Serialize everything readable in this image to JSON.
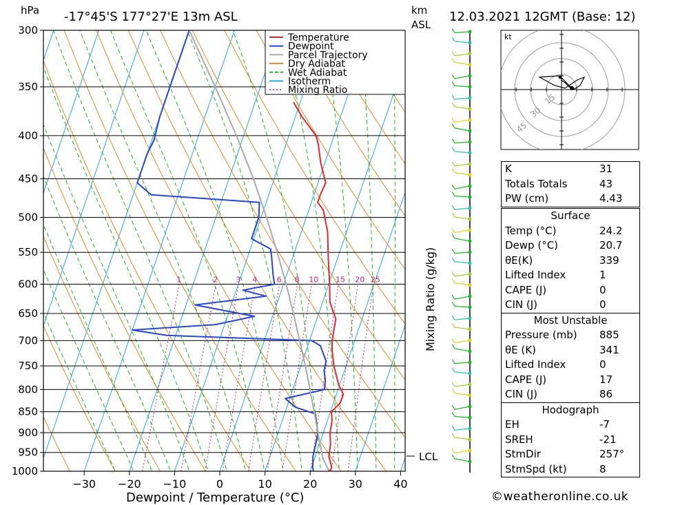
{
  "header": {
    "location": "-17°45'S  177°27'E  13m  ASL",
    "datetime": "12.03.2021  12GMT  (Base: 12)",
    "pressure_unit": "hPa",
    "height_unit_km": "km",
    "height_unit_asl": "ASL"
  },
  "chart_data": {
    "type": "skewt",
    "title": "-17°45'S 177°27'E 13m ASL",
    "xlabel": "Dewpoint / Temperature (°C)",
    "ylabel": "hPa",
    "y2label": "Mixing Ratio (g/kg)",
    "xlim": [
      -40,
      40
    ],
    "ylim": [
      1000,
      300
    ],
    "pressure_ticks": [
      300,
      350,
      400,
      450,
      500,
      550,
      600,
      650,
      700,
      750,
      800,
      850,
      900,
      950,
      1000
    ],
    "temp_ticks": [
      -30,
      -20,
      -10,
      0,
      10,
      20,
      30,
      40
    ],
    "mixing_ratio_labels": [
      "1",
      "2",
      "3",
      "4",
      "6",
      "8",
      "10",
      "15",
      "20",
      "25"
    ],
    "mixing_ratio_values": [
      1,
      2,
      3,
      4,
      6,
      8,
      10,
      15,
      20,
      25
    ],
    "lcl_label": "LCL",
    "lcl_pressure": 965,
    "legend": [
      {
        "name": "Temperature",
        "color": "#e8242b"
      },
      {
        "name": "Dewpoint",
        "color": "#2544d8"
      },
      {
        "name": "Parcel Trajectory",
        "color": "#a9a9a9"
      },
      {
        "name": "Dry Adiabat",
        "color": "#e08a2a"
      },
      {
        "name": "Wet Adiabat",
        "color": "#1fb51f"
      },
      {
        "name": "Isotherm",
        "color": "#24a7e0"
      },
      {
        "name": "Mixing Ratio",
        "color": "#c0227f"
      }
    ],
    "series": [
      {
        "name": "Temperature",
        "color": "#e8242b",
        "points": [
          [
            1000,
            24.2
          ],
          [
            990,
            24.5
          ],
          [
            960,
            23
          ],
          [
            930,
            22.5
          ],
          [
            900,
            21.5
          ],
          [
            870,
            21
          ],
          [
            850,
            20.2
          ],
          [
            830,
            21.5
          ],
          [
            810,
            21.5
          ],
          [
            790,
            19.8
          ],
          [
            750,
            17.3
          ],
          [
            720,
            15.8
          ],
          [
            700,
            15
          ],
          [
            660,
            14.2
          ],
          [
            630,
            11.6
          ],
          [
            600,
            10.2
          ],
          [
            560,
            8
          ],
          [
            520,
            5.8
          ],
          [
            490,
            3.2
          ],
          [
            480,
            1.4
          ],
          [
            470,
            1.4
          ],
          [
            455,
            1.7
          ],
          [
            430,
            -1
          ],
          [
            410,
            -2.8
          ],
          [
            400,
            -4
          ],
          [
            380,
            -8.5
          ],
          [
            365,
            -11.5
          ]
        ]
      },
      {
        "name": "Dewpoint",
        "color": "#2544d8",
        "points": [
          [
            1000,
            20.7
          ],
          [
            990,
            20.3
          ],
          [
            960,
            19.5
          ],
          [
            930,
            19.2
          ],
          [
            900,
            18.8
          ],
          [
            870,
            17.5
          ],
          [
            855,
            16.8
          ],
          [
            840,
            12
          ],
          [
            820,
            9
          ],
          [
            800,
            17
          ],
          [
            780,
            16.5
          ],
          [
            760,
            15.5
          ],
          [
            740,
            15.2
          ],
          [
            710,
            12.8
          ],
          [
            700,
            10.5
          ],
          [
            690,
            -22
          ],
          [
            680,
            -30
          ],
          [
            670,
            -12
          ],
          [
            655,
            -4
          ],
          [
            635,
            -18
          ],
          [
            620,
            -3
          ],
          [
            610,
            -8.5
          ],
          [
            600,
            -2
          ],
          [
            585,
            -3
          ],
          [
            560,
            -4.5
          ],
          [
            545,
            -5.5
          ],
          [
            530,
            -10.5
          ],
          [
            500,
            -10.5
          ],
          [
            480,
            -11.5
          ],
          [
            470,
            -36
          ],
          [
            455,
            -40
          ],
          [
            420,
            -40
          ],
          [
            405,
            -39.5
          ],
          [
            380,
            -40
          ],
          [
            340,
            -40
          ],
          [
            300,
            -40
          ]
        ]
      },
      {
        "name": "Parcel Trajectory",
        "color": "#a9a9a9",
        "points": [
          [
            1000,
            24.2
          ],
          [
            965,
            21.8
          ],
          [
            900,
            18.8
          ],
          [
            850,
            16.4
          ],
          [
            800,
            13.8
          ],
          [
            750,
            11
          ],
          [
            700,
            7.8
          ],
          [
            650,
            4.4
          ],
          [
            600,
            0.6
          ],
          [
            550,
            -3.8
          ],
          [
            500,
            -8.8
          ],
          [
            450,
            -14.6
          ],
          [
            400,
            -21.6
          ],
          [
            350,
            -30
          ],
          [
            300,
            -40
          ]
        ]
      }
    ]
  },
  "hodograph": {
    "unit": "kt",
    "ring_labels": [
      "15",
      "30",
      "45"
    ]
  },
  "indices": {
    "rows": [
      {
        "label": "K",
        "value": "31"
      },
      {
        "label": "Totals Totals",
        "value": "43"
      },
      {
        "label": "PW (cm)",
        "value": "4.43"
      }
    ]
  },
  "surface": {
    "title": "Surface",
    "rows": [
      {
        "label": "Temp (°C)",
        "value": "24.2"
      },
      {
        "label": "Dewp (°C)",
        "value": "20.7"
      },
      {
        "label": "θE(K)",
        "value": "339"
      },
      {
        "label": "Lifted Index",
        "value": "1"
      },
      {
        "label": "CAPE (J)",
        "value": "0"
      },
      {
        "label": "CIN (J)",
        "value": "0"
      }
    ]
  },
  "most_unstable": {
    "title": "Most Unstable",
    "rows": [
      {
        "label": "Pressure (mb)",
        "value": "885"
      },
      {
        "label": "θE (K)",
        "value": "341"
      },
      {
        "label": "Lifted Index",
        "value": "0"
      },
      {
        "label": "CAPE (J)",
        "value": "17"
      },
      {
        "label": "CIN (J)",
        "value": "86"
      }
    ]
  },
  "hodo_params": {
    "title": "Hodograph",
    "rows": [
      {
        "label": "EH",
        "value": "-7"
      },
      {
        "label": "SREH",
        "value": "-21"
      },
      {
        "label": "StmDir",
        "value": "257°"
      },
      {
        "label": "StmSpd (kt)",
        "value": "8"
      }
    ]
  },
  "footer": "©weatheronline.co.uk"
}
